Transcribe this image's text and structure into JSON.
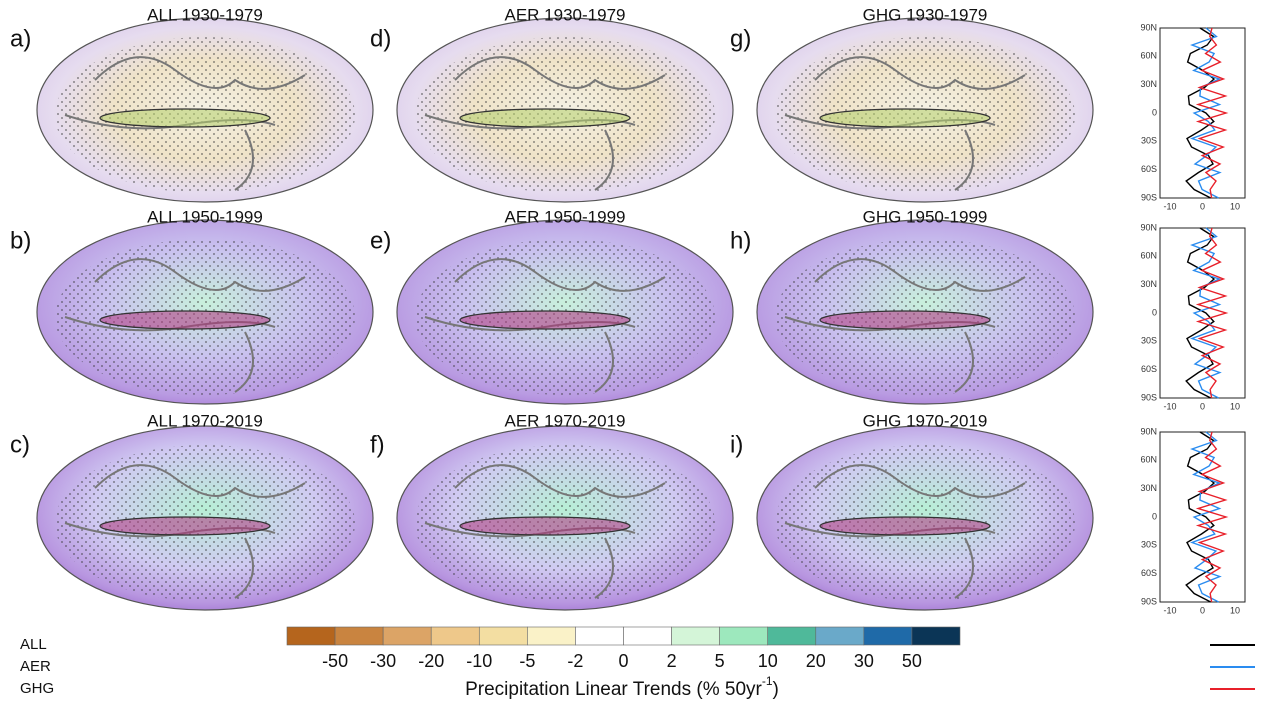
{
  "panels": [
    {
      "letter": "a)",
      "title": "ALL 1930-1979"
    },
    {
      "letter": "b)",
      "title": "ALL 1950-1999"
    },
    {
      "letter": "c)",
      "title": "ALL 1970-2019"
    },
    {
      "letter": "d)",
      "title": "AER 1930-1979"
    },
    {
      "letter": "e)",
      "title": "AER 1950-1999"
    },
    {
      "letter": "f)",
      "title": "AER 1970-2019"
    },
    {
      "letter": "g)",
      "title": "GHG 1930-1979"
    },
    {
      "letter": "h)",
      "title": "GHG 1950-1999"
    },
    {
      "letter": "i)",
      "title": "GHG 1970-2019"
    }
  ],
  "profiles": {
    "lat_labels": [
      "90N",
      "60N",
      "30N",
      "0",
      "30S",
      "60S",
      "90S"
    ],
    "x_labels": [
      -10,
      0,
      10
    ]
  },
  "colorbar": {
    "colors": [
      "#b5651d",
      "#c98440",
      "#dca466",
      "#eec88a",
      "#f3dea2",
      "#faf2c8",
      "#ffffff",
      "#ffffff",
      "#d4f5d8",
      "#9de8bd",
      "#4fb99a",
      "#6aa9c9",
      "#1f6aa8",
      "#0b3556"
    ],
    "ticks": [
      -50,
      -30,
      -20,
      -10,
      -5,
      -2,
      0,
      2,
      5,
      10,
      20,
      30,
      50
    ],
    "label": "Precipitation Linear Trends (% 50yr",
    "label_sup": "-1",
    "label_end": ")"
  },
  "legend": [
    {
      "name": "ALL",
      "color": "#000000"
    },
    {
      "name": "AER",
      "color": "#2a8cf0"
    },
    {
      "name": "GHG",
      "color": "#e8202a"
    }
  ]
}
